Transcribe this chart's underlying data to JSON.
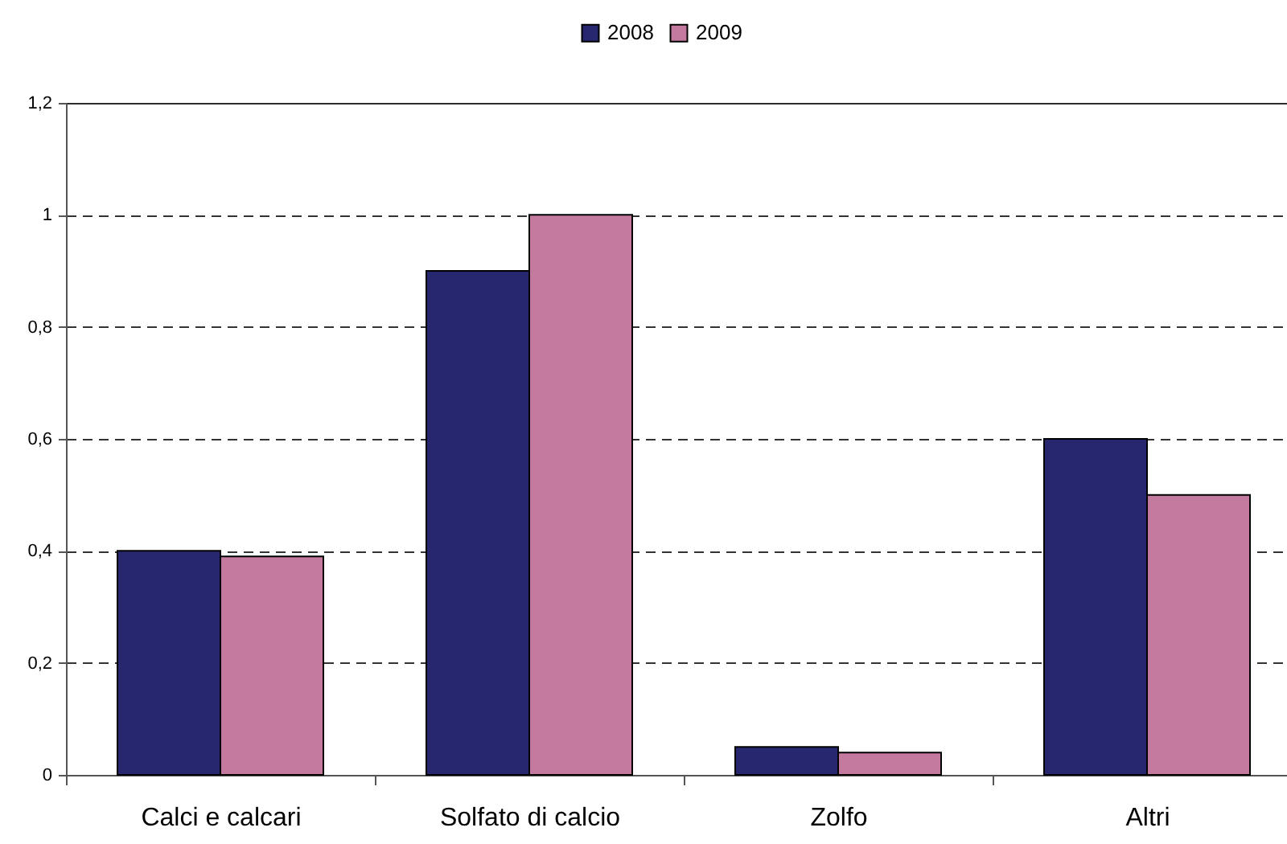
{
  "chart_data": {
    "type": "bar",
    "categories": [
      "Calci e calcari",
      "Solfato di calcio",
      "Zolfo",
      "Altri"
    ],
    "series": [
      {
        "name": "2008",
        "color": "#27276f",
        "values": [
          0.4,
          0.9,
          0.05,
          0.6
        ]
      },
      {
        "name": "2009",
        "color": "#c47a9f",
        "values": [
          0.39,
          1.0,
          0.04,
          0.5
        ]
      }
    ],
    "ylim": [
      0,
      1.2
    ],
    "yticks": [
      0,
      {
        "value": 0.2,
        "label": "0,2"
      },
      {
        "value": 0.4,
        "label": "0,4"
      },
      {
        "value": 0.6,
        "label": "0,6"
      },
      {
        "value": 0.8,
        "label": "0,8"
      },
      1,
      {
        "value": 1.2,
        "label": "1,2"
      }
    ],
    "grid": "y",
    "legend": "top"
  }
}
